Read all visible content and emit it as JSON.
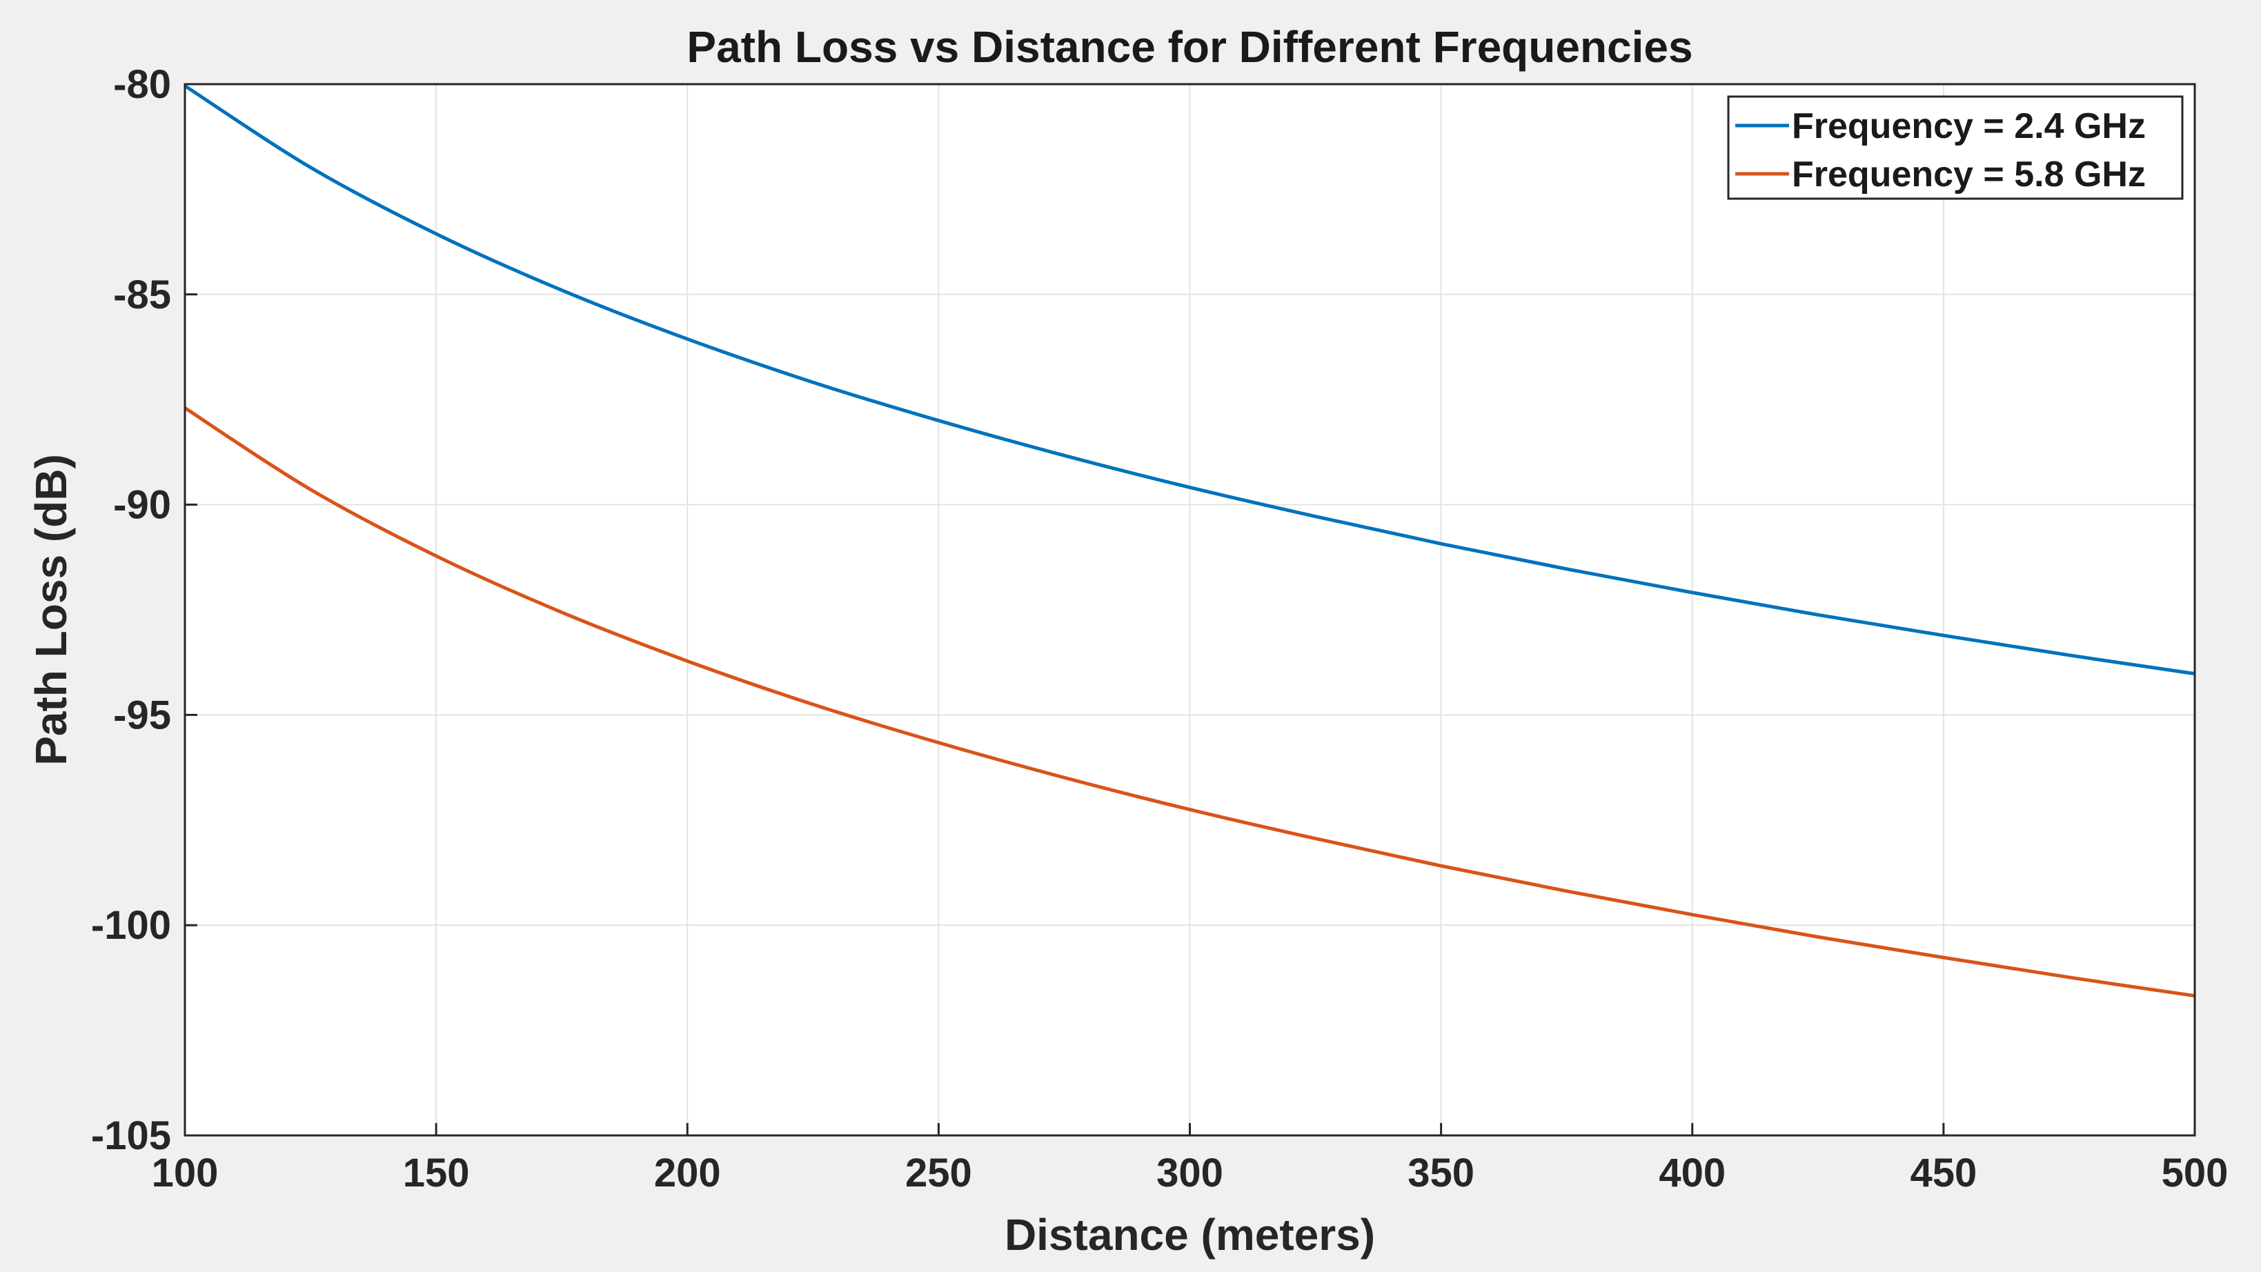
{
  "chart_data": {
    "type": "line",
    "title": "Path Loss vs Distance for Different Frequencies",
    "xlabel": "Distance (meters)",
    "ylabel": "Path Loss (dB)",
    "xlim": [
      100,
      500
    ],
    "ylim": [
      -105,
      -80
    ],
    "xticks": [
      100,
      150,
      200,
      250,
      300,
      350,
      400,
      450,
      500
    ],
    "yticks": [
      -80,
      -85,
      -90,
      -95,
      -100,
      -105
    ],
    "xtick_labels": [
      "100",
      "150",
      "200",
      "250",
      "300",
      "350",
      "400",
      "450",
      "500"
    ],
    "ytick_labels": [
      "-80",
      "-85",
      "-90",
      "-95",
      "-100",
      "-105"
    ],
    "grid": true,
    "legend_position": "top-right",
    "x": [
      100,
      125,
      150,
      175,
      200,
      225,
      250,
      275,
      300,
      325,
      350,
      375,
      400,
      425,
      450,
      475,
      500
    ],
    "series": [
      {
        "name": "Frequency = 2.4 GHz",
        "color": "#0072bd",
        "values": [
          -80.04,
          -81.98,
          -83.56,
          -84.9,
          -86.06,
          -87.09,
          -88.0,
          -88.83,
          -89.59,
          -90.28,
          -90.93,
          -91.53,
          -92.09,
          -92.62,
          -93.11,
          -93.58,
          -94.02
        ]
      },
      {
        "name": "Frequency = 5.8 GHz",
        "color": "#d95319",
        "values": [
          -87.7,
          -89.64,
          -91.22,
          -92.56,
          -93.72,
          -94.75,
          -95.66,
          -96.49,
          -97.25,
          -97.94,
          -98.59,
          -99.19,
          -99.75,
          -100.28,
          -100.77,
          -101.24,
          -101.68
        ]
      }
    ]
  }
}
